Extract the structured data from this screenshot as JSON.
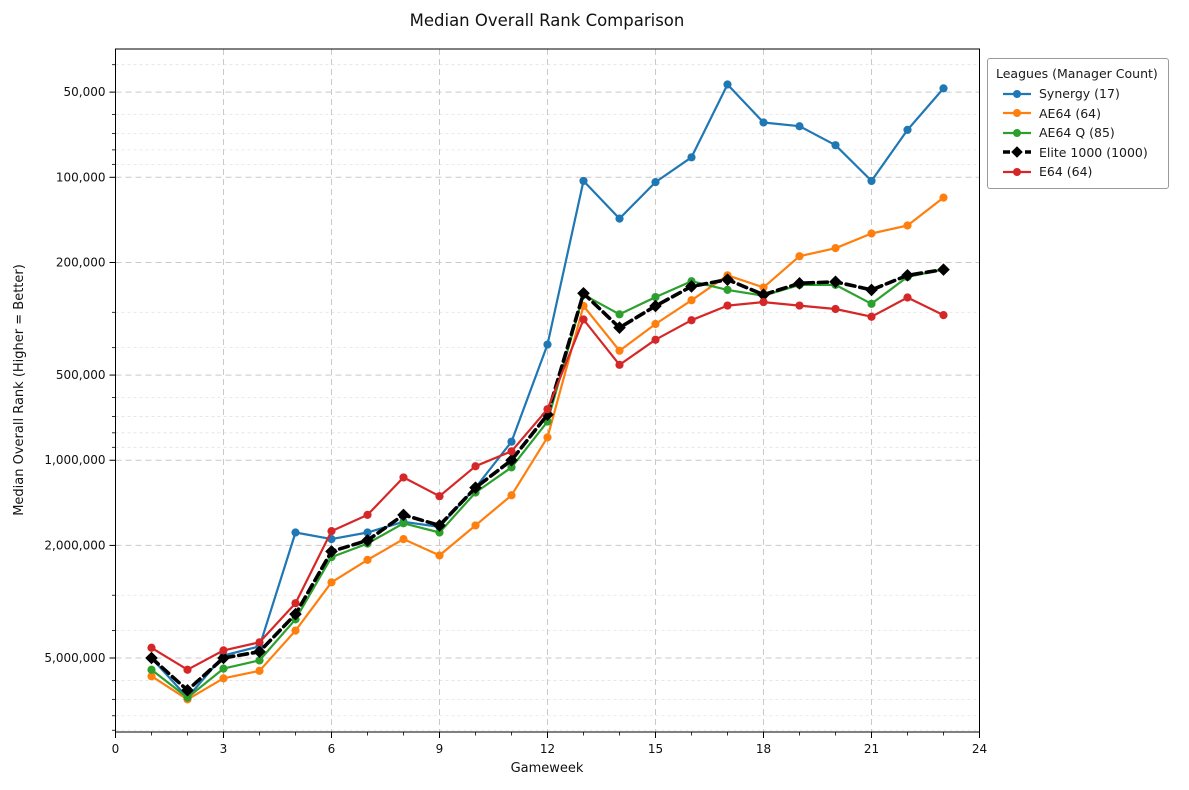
{
  "figure": {
    "title": "Median Overall Rank Comparison"
  },
  "legend": {
    "title": "Leagues (Manager Count)",
    "position": "outside upper right"
  },
  "chart_data": {
    "type": "line",
    "title": "Median Overall Rank Comparison",
    "xlabel": "Gameweek",
    "ylabel": "Median Overall Rank (Higher = Better)",
    "xlim": [
      0,
      24
    ],
    "x_tick_labels": [
      "0",
      "3",
      "6",
      "9",
      "12",
      "15",
      "18",
      "21",
      "24"
    ],
    "x_ticks": [
      0,
      3,
      6,
      9,
      12,
      15,
      18,
      21,
      24
    ],
    "x_minor_step": 1,
    "y_scale": "log",
    "y_inverted": true,
    "y_axis_note": "lower rank number plotted higher (better)",
    "ylim": [
      35200,
      9130000
    ],
    "y_major_ticks": [
      50000,
      100000,
      200000,
      500000,
      1000000,
      2000000,
      5000000
    ],
    "y_tick_labels": [
      "50,000",
      "100,000",
      "200,000",
      "500,000",
      "1,000,000",
      "2,000,000",
      "5,000,000"
    ],
    "grid": true,
    "x": [
      1,
      2,
      3,
      4,
      5,
      6,
      7,
      8,
      9,
      10,
      11,
      12,
      13,
      14,
      15,
      16,
      17,
      18,
      19,
      20,
      21,
      22,
      23
    ],
    "series": [
      {
        "name": "Synergy (17)",
        "color": "#1f77b4",
        "line": "solid",
        "marker": "circle",
        "values": [
          5000000,
          6900000,
          4900000,
          4550000,
          1800000,
          1900000,
          1800000,
          1650000,
          1720000,
          1250000,
          860000,
          390000,
          103000,
          140000,
          104000,
          85000,
          47000,
          64000,
          66000,
          77000,
          103000,
          68000,
          48500
        ]
      },
      {
        "name": "AE64 (64)",
        "color": "#ff7f0e",
        "line": "solid",
        "marker": "circle",
        "values": [
          5800000,
          7000000,
          5900000,
          5550000,
          4000000,
          2700000,
          2250000,
          1900000,
          2170000,
          1700000,
          1330000,
          830000,
          285000,
          410000,
          330000,
          272000,
          222000,
          245000,
          190000,
          178000,
          158000,
          148000,
          118000
        ]
      },
      {
        "name": "AE64 Q (85)",
        "color": "#2ca02c",
        "line": "solid",
        "marker": "circle",
        "values": [
          5500000,
          6900000,
          5450000,
          5100000,
          3650000,
          2200000,
          1970000,
          1670000,
          1800000,
          1300000,
          1060000,
          730000,
          260000,
          305000,
          265000,
          233000,
          250000,
          262000,
          240000,
          240000,
          280000,
          225000,
          212000
        ]
      },
      {
        "name": "Elite 1000 (1000)",
        "color": "#000000",
        "line": "dashed",
        "marker": "diamond",
        "values": [
          5000000,
          6500000,
          5000000,
          4750000,
          3500000,
          2100000,
          1920000,
          1560000,
          1700000,
          1250000,
          1000000,
          690000,
          257000,
          340000,
          285000,
          243000,
          230000,
          260000,
          237000,
          234000,
          250000,
          222000,
          212000
        ]
      },
      {
        "name": "E64 (64)",
        "color": "#d62728",
        "line": "solid",
        "marker": "circle",
        "values": [
          4600000,
          5500000,
          4700000,
          4400000,
          3200000,
          1780000,
          1560000,
          1150000,
          1340000,
          1050000,
          930000,
          660000,
          318000,
          460000,
          375000,
          320000,
          284000,
          276000,
          284000,
          292000,
          311000,
          266000,
          307000
        ]
      }
    ],
    "style": {
      "grid_major_color": "#c9c9c9",
      "grid_minor_color": "#e3e3e3",
      "spine_color": "#000000",
      "background": "#ffffff"
    }
  }
}
